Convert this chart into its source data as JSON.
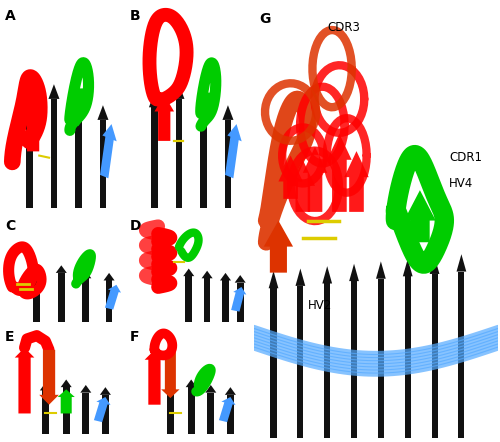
{
  "figure_width": 5.0,
  "figure_height": 4.42,
  "dpi": 100,
  "background_color": "#ffffff",
  "panel_label_fontsize": 10,
  "panel_label_fontweight": "bold",
  "colors": {
    "red": "#ff0000",
    "orange_red": "#dd3300",
    "green": "#00cc00",
    "blue": "#4499ff",
    "cyan_blue": "#55aaff",
    "black": "#111111",
    "yellow": "#ddcc00",
    "dark_green": "#008800",
    "white": "#ffffff"
  },
  "panel_positions": {
    "A": [
      0.005,
      0.515,
      0.245,
      0.475
    ],
    "B": [
      0.255,
      0.515,
      0.245,
      0.475
    ],
    "C": [
      0.005,
      0.265,
      0.245,
      0.245
    ],
    "D": [
      0.255,
      0.265,
      0.245,
      0.245
    ],
    "E": [
      0.005,
      0.01,
      0.245,
      0.248
    ],
    "F": [
      0.255,
      0.01,
      0.245,
      0.248
    ],
    "G": [
      0.508,
      0.01,
      0.488,
      0.982
    ]
  }
}
